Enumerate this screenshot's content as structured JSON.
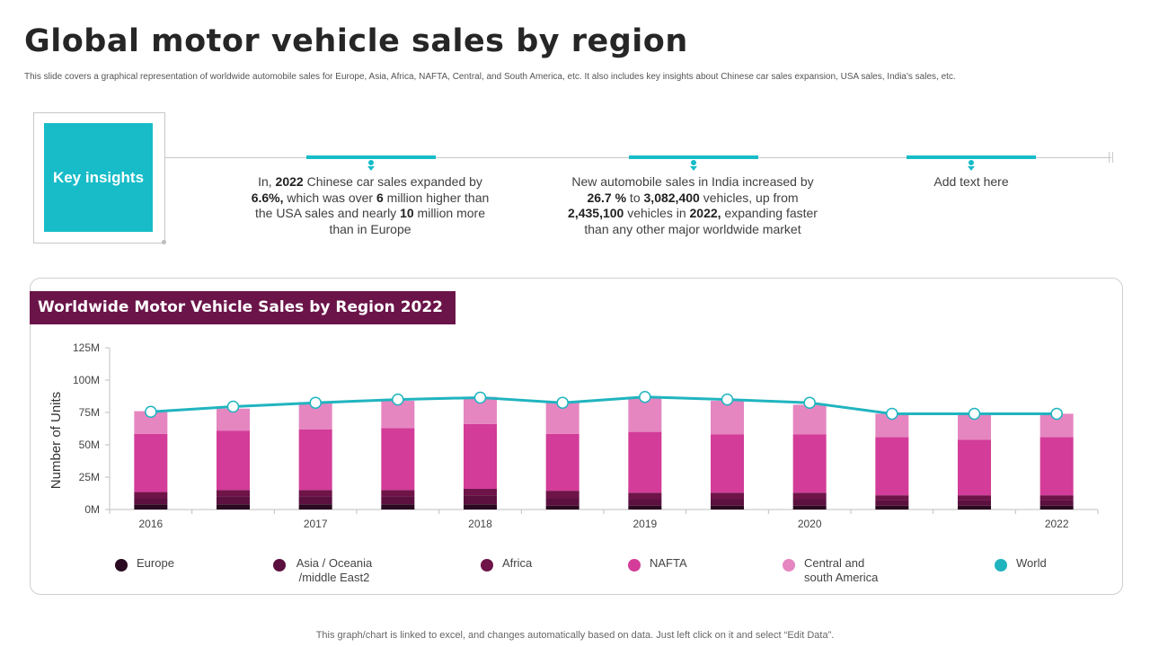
{
  "page": {
    "title": "Global motor vehicle sales by region",
    "subtitle": "This slide covers a graphical representation of worldwide automobile sales for Europe, Asia, Africa, NAFTA, Central, and South America, etc. It also includes key insights about Chinese  car sales expansion, USA sales, India's sales, etc.",
    "footer": "This graph/chart is linked to excel,  and changes automatically based on data. Just left click on it and select “Edit Data”."
  },
  "insights": {
    "label": "Key insights",
    "items": [
      {
        "parts": [
          "In, ",
          "2022",
          " Chinese car sales expanded by ",
          "6.6%,",
          " which was over ",
          "6",
          " million higher than the USA sales and nearly ",
          "10",
          " million more than in Europe"
        ]
      },
      {
        "parts": [
          "New automobile sales in India increased by ",
          "26.7 %",
          " to ",
          "3,082,400",
          " vehicles, up from ",
          "2,435,100",
          " vehicles in ",
          "2022,",
          " expanding faster than any other major worldwide market"
        ]
      },
      {
        "parts": [
          "Add text here"
        ]
      }
    ]
  },
  "colors": {
    "accent": "#17bcc8",
    "title_bar": "#6b1449",
    "europe": "#2a0a20",
    "asia": "#5c1040",
    "africa": "#6e1448",
    "nafta": "#d33c99",
    "central_south_america": "#e586c1",
    "world": "#20b4bf"
  },
  "chart_data": {
    "type": "bar",
    "stacked": true,
    "title": "Worldwide Motor Vehicle Sales by Region 2022",
    "ylabel": "Number  of Units",
    "xlabel": "",
    "ylim": [
      0,
      125
    ],
    "y_ticks": [
      "0M",
      "25M",
      "50M",
      "75M",
      "100M",
      "125M"
    ],
    "x_tick_labels": [
      "2016",
      "",
      "2017",
      "",
      "2018",
      "",
      "2019",
      "",
      "2020",
      "",
      "",
      "2022"
    ],
    "series": [
      {
        "name": "Europe",
        "values": [
          4,
          4,
          4,
          4,
          4,
          3,
          3,
          3,
          3,
          3,
          3,
          3
        ]
      },
      {
        "name": "Asia / Oceania /middle East2",
        "values": [
          5,
          6,
          6,
          6,
          7,
          6,
          5,
          5,
          5,
          4,
          4,
          4
        ]
      },
      {
        "name": "Africa",
        "values": [
          4.5,
          5,
          5,
          5,
          5,
          5.5,
          5,
          5,
          5,
          4,
          4,
          4
        ]
      },
      {
        "name": "NAFTA",
        "values": [
          45,
          46,
          47,
          48,
          50,
          44,
          47,
          45,
          45,
          45,
          43,
          45
        ]
      },
      {
        "name": "Central and south America",
        "values": [
          17.5,
          17,
          21,
          21,
          21,
          25,
          27,
          26,
          23,
          18,
          19,
          18
        ]
      }
    ],
    "line": {
      "name": "World",
      "values": [
        75.5,
        79.5,
        82.5,
        85,
        86.5,
        82.5,
        87,
        85,
        82.5,
        74,
        74,
        74
      ]
    },
    "legend": [
      "Europe",
      "Asia / Oceania /middle East2",
      "Africa",
      "NAFTA",
      "Central and south America",
      "World"
    ],
    "legend_position": "bottom"
  }
}
